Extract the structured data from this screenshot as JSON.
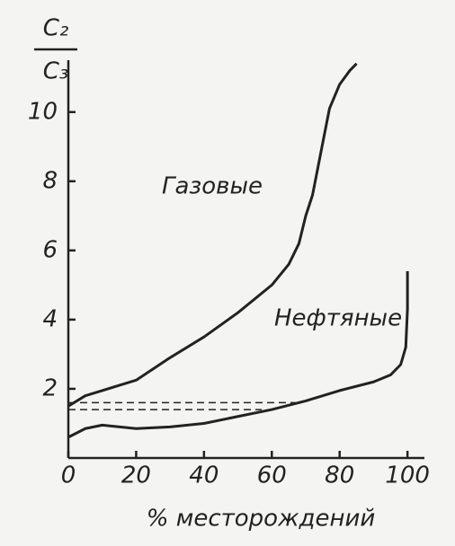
{
  "chart_data": {
    "type": "line",
    "y_label": {
      "numerator": "C₂",
      "denominator": "C₃"
    },
    "x_label": "% месторождений",
    "xlim": [
      0,
      105
    ],
    "ylim": [
      0,
      11.5
    ],
    "xticks": [
      0,
      20,
      40,
      60,
      80,
      100
    ],
    "yticks": [
      2,
      4,
      6,
      8,
      10
    ],
    "series": [
      {
        "name": "Газовые",
        "color": "#222222",
        "x": [
          0,
          5,
          10,
          20,
          30,
          40,
          50,
          60,
          65,
          68,
          70,
          72,
          74,
          77,
          80,
          83,
          85
        ],
        "values": [
          1.5,
          1.8,
          1.95,
          2.25,
          2.9,
          3.5,
          4.2,
          5.0,
          5.6,
          6.2,
          7.0,
          7.6,
          8.6,
          10.1,
          10.8,
          11.2,
          11.4
        ]
      },
      {
        "name": "Нефтяные",
        "color": "#222222",
        "x": [
          0,
          5,
          10,
          20,
          30,
          40,
          50,
          60,
          70,
          80,
          90,
          95,
          98,
          99.5,
          100,
          100
        ],
        "values": [
          0.6,
          0.85,
          0.95,
          0.85,
          0.9,
          1.0,
          1.2,
          1.4,
          1.65,
          1.95,
          2.2,
          2.4,
          2.7,
          3.2,
          4.3,
          5.4
        ]
      }
    ],
    "reference_lines": [
      {
        "y": 1.6,
        "x_end": 67
      },
      {
        "y": 1.4,
        "x_end": 57
      }
    ]
  }
}
